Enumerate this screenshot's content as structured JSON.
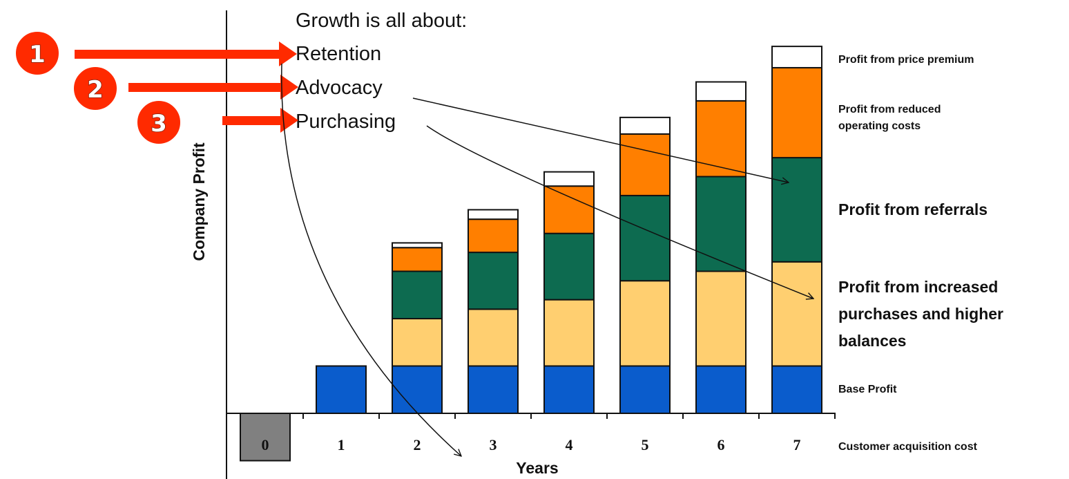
{
  "chart_data": {
    "type": "bar",
    "stacked": true,
    "title": "",
    "xlabel": "Years",
    "ylabel": "Company Profit",
    "categories": [
      "0",
      "1",
      "2",
      "3",
      "4",
      "5",
      "6",
      "7"
    ],
    "series": [
      {
        "name": "Customer acquisition cost",
        "color": "#808080",
        "values": [
          -1.0,
          0,
          0,
          0,
          0,
          0,
          0,
          0
        ]
      },
      {
        "name": "Base Profit",
        "color": "#0a5ccc",
        "values": [
          0,
          1.0,
          1.0,
          1.0,
          1.0,
          1.0,
          1.0,
          1.0
        ]
      },
      {
        "name": "Profit from increased purchases and higher balances",
        "color": "#ffcf70",
        "values": [
          0,
          0,
          1.0,
          1.2,
          1.4,
          1.8,
          2.0,
          2.2
        ]
      },
      {
        "name": "Profit from referrals",
        "color": "#0d6b50",
        "values": [
          0,
          0,
          1.0,
          1.2,
          1.4,
          1.8,
          2.0,
          2.2
        ]
      },
      {
        "name": "Profit from reduced operating costs",
        "color": "#ff7f00",
        "values": [
          0,
          0,
          0.5,
          0.7,
          1.0,
          1.3,
          1.6,
          1.9
        ]
      },
      {
        "name": "Profit from price premium",
        "color": "#ffffff",
        "values": [
          0,
          0,
          0.1,
          0.2,
          0.3,
          0.35,
          0.4,
          0.45
        ]
      }
    ],
    "ylim": [
      -1.0,
      7.8
    ],
    "grid": false,
    "legend_position": "right"
  },
  "annotation": {
    "heading": "Growth is all about:",
    "items": [
      {
        "number": "1",
        "label": "Retention",
        "color": "#ff2a00"
      },
      {
        "number": "2",
        "label": "Advocacy",
        "color": "#ff2a00"
      },
      {
        "number": "3",
        "label": "Purchasing",
        "color": "#ff2a00"
      }
    ]
  },
  "legend": {
    "price_premium": "Profit from price premium",
    "reduced_costs_line1": "Profit from reduced",
    "reduced_costs_line2": "operating costs",
    "referrals": "Profit from referrals",
    "purchases_line1": "Profit from increased",
    "purchases_line2": "purchases and higher",
    "purchases_line3": "balances",
    "base": "Base Profit",
    "acquisition": "Customer acquisition cost"
  }
}
